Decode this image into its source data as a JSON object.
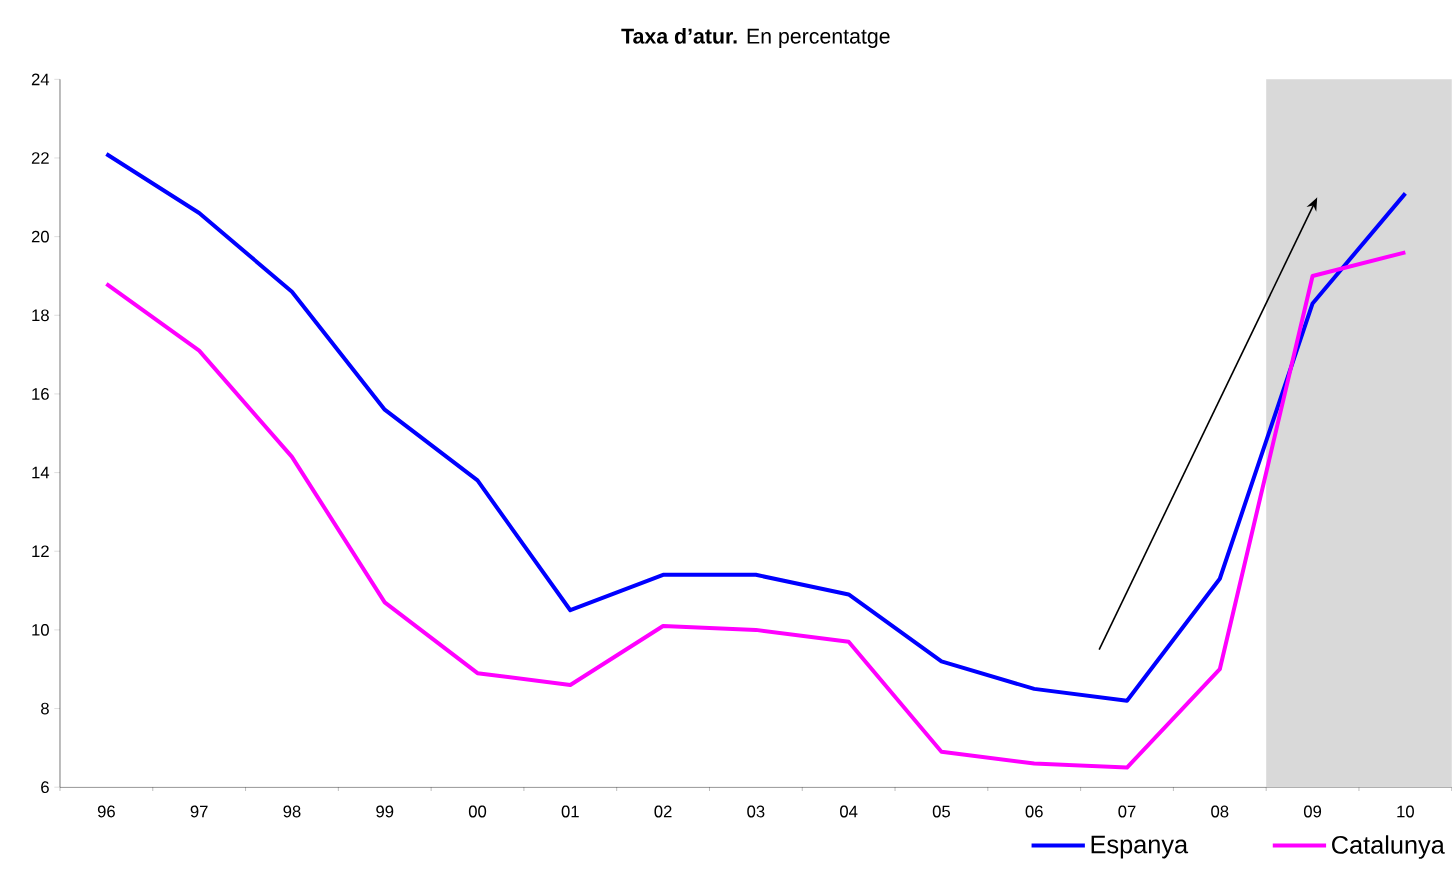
{
  "chart_data": {
    "type": "line",
    "title": "**Taxa d’atur.** En percentatge",
    "categories": [
      "96",
      "97",
      "98",
      "99",
      "00",
      "01",
      "02",
      "03",
      "04",
      "05",
      "06",
      "07",
      "08",
      "09",
      "10"
    ],
    "series": [
      {
        "name": "Espanya",
        "color": "#0000ff",
        "values": [
          22.1,
          20.6,
          18.6,
          15.6,
          13.8,
          10.5,
          11.4,
          11.4,
          10.9,
          9.2,
          8.5,
          8.2,
          11.3,
          18.3,
          21.1
        ]
      },
      {
        "name": "Catalunya",
        "color": "#ff00ff",
        "values": [
          18.8,
          17.1,
          14.4,
          10.7,
          8.9,
          8.6,
          10.1,
          10.0,
          9.7,
          6.9,
          6.6,
          6.5,
          9.0,
          19.0,
          19.6
        ]
      }
    ],
    "ylim": [
      6,
      24
    ],
    "yticks": [
      6,
      8,
      10,
      12,
      14,
      16,
      18,
      20,
      22,
      24
    ],
    "bands": [
      {
        "axis": "x",
        "from": "09",
        "to": "10",
        "color": "#d9d9d9"
      }
    ],
    "grid": false,
    "legend": "bottom right",
    "marker": "none",
    "line_style": "solid"
  }
}
